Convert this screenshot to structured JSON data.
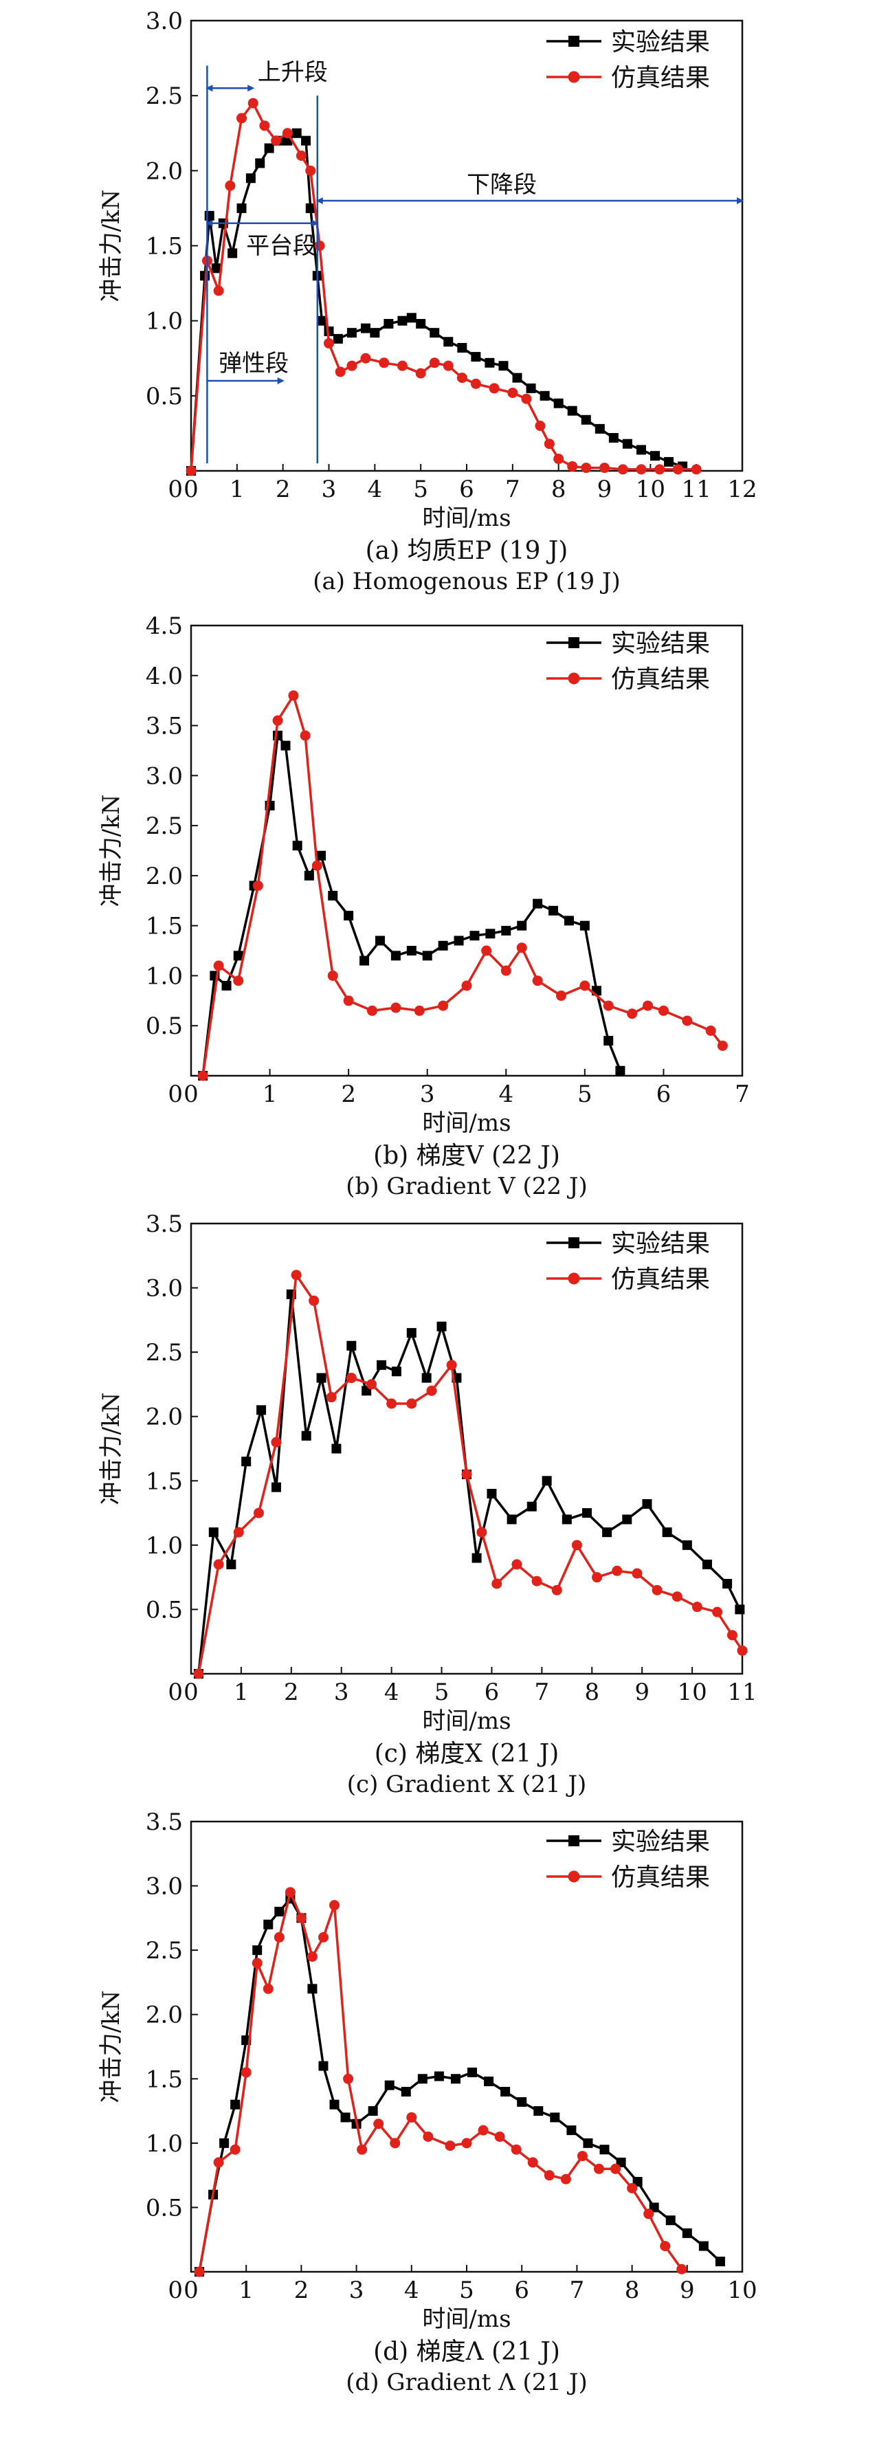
{
  "chart_data": [
    {
      "type": "line",
      "caption_cn": "(a) 均质EP (19 J)",
      "caption_en": "(a) Homogenous EP (19 J)",
      "xlabel": "时间/ms",
      "ylabel": "冲击力/kN",
      "xlim": [
        0,
        12
      ],
      "ylim": [
        0,
        3.0
      ],
      "xticks": [
        "0",
        "1",
        "2",
        "3",
        "4",
        "5",
        "6",
        "7",
        "8",
        "9",
        "10",
        "11",
        "12"
      ],
      "yticks": [
        "0.5",
        "1.0",
        "1.5",
        "2.0",
        "2.5",
        "3.0"
      ],
      "legend_position": "top-right",
      "annotations": [
        "上升段",
        "平台段",
        "下降段",
        "弹性段"
      ],
      "series": [
        {
          "name": "实验结果",
          "color": "#000000",
          "marker": "square",
          "x": [
            0,
            0.3,
            0.4,
            0.55,
            0.7,
            0.9,
            1.1,
            1.3,
            1.5,
            1.7,
            1.9,
            2.1,
            2.3,
            2.5,
            2.6,
            2.75,
            2.85,
            3.0,
            3.2,
            3.5,
            3.8,
            4.0,
            4.3,
            4.6,
            4.8,
            5.0,
            5.3,
            5.6,
            5.9,
            6.2,
            6.5,
            6.8,
            7.1,
            7.4,
            7.7,
            8.0,
            8.3,
            8.6,
            8.9,
            9.2,
            9.5,
            9.8,
            10.1,
            10.4,
            10.7
          ],
          "y": [
            0,
            1.3,
            1.7,
            1.35,
            1.65,
            1.45,
            1.75,
            1.95,
            2.05,
            2.15,
            2.2,
            2.2,
            2.25,
            2.2,
            1.75,
            1.3,
            1.0,
            0.93,
            0.88,
            0.92,
            0.95,
            0.92,
            0.98,
            1.0,
            1.02,
            0.98,
            0.92,
            0.86,
            0.82,
            0.76,
            0.72,
            0.7,
            0.62,
            0.55,
            0.5,
            0.45,
            0.4,
            0.34,
            0.28,
            0.22,
            0.18,
            0.14,
            0.1,
            0.06,
            0.03
          ]
        },
        {
          "name": "仿真结果",
          "color": "#e0221a",
          "marker": "circle",
          "x": [
            0,
            0.35,
            0.6,
            0.85,
            1.1,
            1.35,
            1.6,
            1.85,
            2.1,
            2.4,
            2.6,
            2.8,
            3.0,
            3.25,
            3.5,
            3.8,
            4.2,
            4.6,
            5.0,
            5.3,
            5.6,
            5.9,
            6.2,
            6.6,
            7.0,
            7.3,
            7.6,
            7.8,
            8.0,
            8.3,
            8.6,
            9.0,
            9.4,
            9.8,
            10.2,
            10.6,
            11.0
          ],
          "y": [
            0,
            1.4,
            1.2,
            1.9,
            2.35,
            2.45,
            2.3,
            2.2,
            2.25,
            2.1,
            2.0,
            1.5,
            0.85,
            0.66,
            0.7,
            0.75,
            0.72,
            0.7,
            0.65,
            0.72,
            0.7,
            0.62,
            0.58,
            0.55,
            0.52,
            0.48,
            0.3,
            0.18,
            0.08,
            0.03,
            0.02,
            0.02,
            0.01,
            0.01,
            0.01,
            0.01,
            0.01
          ]
        }
      ]
    },
    {
      "type": "line",
      "caption_cn": "(b) 梯度V (22 J)",
      "caption_en": "(b) Gradient V (22 J)",
      "xlabel": "时间/ms",
      "ylabel": "冲击力/kN",
      "xlim": [
        0,
        7
      ],
      "ylim": [
        0,
        4.5
      ],
      "xticks": [
        "0",
        "1",
        "2",
        "3",
        "4",
        "5",
        "6",
        "7"
      ],
      "yticks": [
        "0.5",
        "1.0",
        "1.5",
        "2.0",
        "2.5",
        "3.0",
        "3.5",
        "4.0",
        "4.5"
      ],
      "legend_position": "top-right",
      "series": [
        {
          "name": "实验结果",
          "color": "#000000",
          "marker": "square",
          "x": [
            0.15,
            0.3,
            0.45,
            0.6,
            0.8,
            1.0,
            1.1,
            1.2,
            1.35,
            1.5,
            1.65,
            1.8,
            2.0,
            2.2,
            2.4,
            2.6,
            2.8,
            3.0,
            3.2,
            3.4,
            3.6,
            3.8,
            4.0,
            4.2,
            4.4,
            4.6,
            4.8,
            5.0,
            5.15,
            5.3,
            5.45
          ],
          "y": [
            0,
            1.0,
            0.9,
            1.2,
            1.9,
            2.7,
            3.4,
            3.3,
            2.3,
            2.0,
            2.2,
            1.8,
            1.6,
            1.15,
            1.35,
            1.2,
            1.25,
            1.2,
            1.3,
            1.35,
            1.4,
            1.42,
            1.45,
            1.5,
            1.72,
            1.65,
            1.55,
            1.5,
            0.85,
            0.35,
            0.05
          ]
        },
        {
          "name": "仿真结果",
          "color": "#e0221a",
          "marker": "circle",
          "x": [
            0.15,
            0.35,
            0.6,
            0.85,
            1.1,
            1.3,
            1.45,
            1.6,
            1.8,
            2.0,
            2.3,
            2.6,
            2.9,
            3.2,
            3.5,
            3.75,
            4.0,
            4.2,
            4.4,
            4.7,
            5.0,
            5.3,
            5.6,
            5.8,
            6.0,
            6.3,
            6.6,
            6.75
          ],
          "y": [
            0,
            1.1,
            0.95,
            1.9,
            3.55,
            3.8,
            3.4,
            2.1,
            1.0,
            0.75,
            0.65,
            0.68,
            0.65,
            0.7,
            0.9,
            1.25,
            1.05,
            1.28,
            0.95,
            0.8,
            0.9,
            0.7,
            0.62,
            0.7,
            0.65,
            0.55,
            0.45,
            0.3
          ]
        }
      ]
    },
    {
      "type": "line",
      "caption_cn": "(c) 梯度X (21 J)",
      "caption_en": "(c) Gradient X (21 J)",
      "xlabel": "时间/ms",
      "ylabel": "冲击力/kN",
      "xlim": [
        0,
        11
      ],
      "ylim": [
        0,
        3.5
      ],
      "xticks": [
        "0",
        "1",
        "2",
        "3",
        "4",
        "5",
        "6",
        "7",
        "8",
        "9",
        "10",
        "11"
      ],
      "yticks": [
        "0.5",
        "1.0",
        "1.5",
        "2.0",
        "2.5",
        "3.0",
        "3.5"
      ],
      "legend_position": "top-right",
      "series": [
        {
          "name": "实验结果",
          "color": "#000000",
          "marker": "square",
          "x": [
            0.15,
            0.45,
            0.8,
            1.1,
            1.4,
            1.7,
            2.0,
            2.3,
            2.6,
            2.9,
            3.2,
            3.5,
            3.8,
            4.1,
            4.4,
            4.7,
            5.0,
            5.3,
            5.5,
            5.7,
            6.0,
            6.4,
            6.8,
            7.1,
            7.5,
            7.9,
            8.3,
            8.7,
            9.1,
            9.5,
            9.9,
            10.3,
            10.7,
            10.95
          ],
          "y": [
            0,
            1.1,
            0.85,
            1.65,
            2.05,
            1.45,
            2.95,
            1.85,
            2.3,
            1.75,
            2.55,
            2.2,
            2.4,
            2.35,
            2.65,
            2.3,
            2.7,
            2.3,
            1.55,
            0.9,
            1.4,
            1.2,
            1.3,
            1.5,
            1.2,
            1.25,
            1.1,
            1.2,
            1.32,
            1.1,
            1.0,
            0.85,
            0.7,
            0.5
          ]
        },
        {
          "name": "仿真结果",
          "color": "#e0221a",
          "marker": "circle",
          "x": [
            0.15,
            0.55,
            0.95,
            1.35,
            1.7,
            2.1,
            2.45,
            2.8,
            3.2,
            3.6,
            4.0,
            4.4,
            4.8,
            5.2,
            5.5,
            5.8,
            6.1,
            6.5,
            6.9,
            7.3,
            7.7,
            8.1,
            8.5,
            8.9,
            9.3,
            9.7,
            10.1,
            10.5,
            10.8,
            11.0
          ],
          "y": [
            0,
            0.85,
            1.1,
            1.25,
            1.8,
            3.1,
            2.9,
            2.15,
            2.3,
            2.25,
            2.1,
            2.1,
            2.2,
            2.4,
            1.55,
            1.1,
            0.7,
            0.85,
            0.72,
            0.65,
            1.0,
            0.75,
            0.8,
            0.78,
            0.65,
            0.6,
            0.52,
            0.48,
            0.3,
            0.18
          ]
        }
      ]
    },
    {
      "type": "line",
      "caption_cn": "(d) 梯度Λ (21 J)",
      "caption_en": "(d) Gradient Λ (21 J)",
      "xlabel": "时间/ms",
      "ylabel": "冲击力/kN",
      "xlim": [
        0,
        10
      ],
      "ylim": [
        0,
        3.5
      ],
      "xticks": [
        "0",
        "1",
        "2",
        "3",
        "4",
        "5",
        "6",
        "7",
        "8",
        "9",
        "10"
      ],
      "yticks": [
        "0.5",
        "1.0",
        "1.5",
        "2.0",
        "2.5",
        "3.0",
        "3.5"
      ],
      "legend_position": "top-right",
      "series": [
        {
          "name": "实验结果",
          "color": "#000000",
          "marker": "square",
          "x": [
            0.15,
            0.4,
            0.6,
            0.8,
            1.0,
            1.2,
            1.4,
            1.6,
            1.8,
            2.0,
            2.2,
            2.4,
            2.6,
            2.8,
            3.0,
            3.3,
            3.6,
            3.9,
            4.2,
            4.5,
            4.8,
            5.1,
            5.4,
            5.7,
            6.0,
            6.3,
            6.6,
            6.9,
            7.2,
            7.5,
            7.8,
            8.1,
            8.4,
            8.7,
            9.0,
            9.3,
            9.6
          ],
          "y": [
            0,
            0.6,
            1.0,
            1.3,
            1.8,
            2.5,
            2.7,
            2.8,
            2.9,
            2.75,
            2.2,
            1.6,
            1.3,
            1.2,
            1.15,
            1.25,
            1.45,
            1.4,
            1.5,
            1.52,
            1.5,
            1.55,
            1.48,
            1.4,
            1.32,
            1.25,
            1.2,
            1.1,
            1.0,
            0.95,
            0.85,
            0.7,
            0.5,
            0.4,
            0.3,
            0.2,
            0.08
          ]
        },
        {
          "name": "仿真结果",
          "color": "#e0221a",
          "marker": "circle",
          "x": [
            0.15,
            0.5,
            0.8,
            1.0,
            1.2,
            1.4,
            1.6,
            1.8,
            2.0,
            2.2,
            2.4,
            2.6,
            2.85,
            3.1,
            3.4,
            3.7,
            4.0,
            4.3,
            4.7,
            5.0,
            5.3,
            5.6,
            5.9,
            6.2,
            6.5,
            6.8,
            7.1,
            7.4,
            7.7,
            8.0,
            8.3,
            8.6,
            8.9
          ],
          "y": [
            0,
            0.85,
            0.95,
            1.55,
            2.4,
            2.2,
            2.6,
            2.95,
            2.75,
            2.45,
            2.6,
            2.85,
            1.5,
            0.95,
            1.15,
            1.0,
            1.2,
            1.05,
            0.98,
            1.0,
            1.1,
            1.05,
            0.95,
            0.85,
            0.75,
            0.72,
            0.9,
            0.8,
            0.8,
            0.65,
            0.45,
            0.2,
            0.02
          ]
        }
      ]
    }
  ]
}
